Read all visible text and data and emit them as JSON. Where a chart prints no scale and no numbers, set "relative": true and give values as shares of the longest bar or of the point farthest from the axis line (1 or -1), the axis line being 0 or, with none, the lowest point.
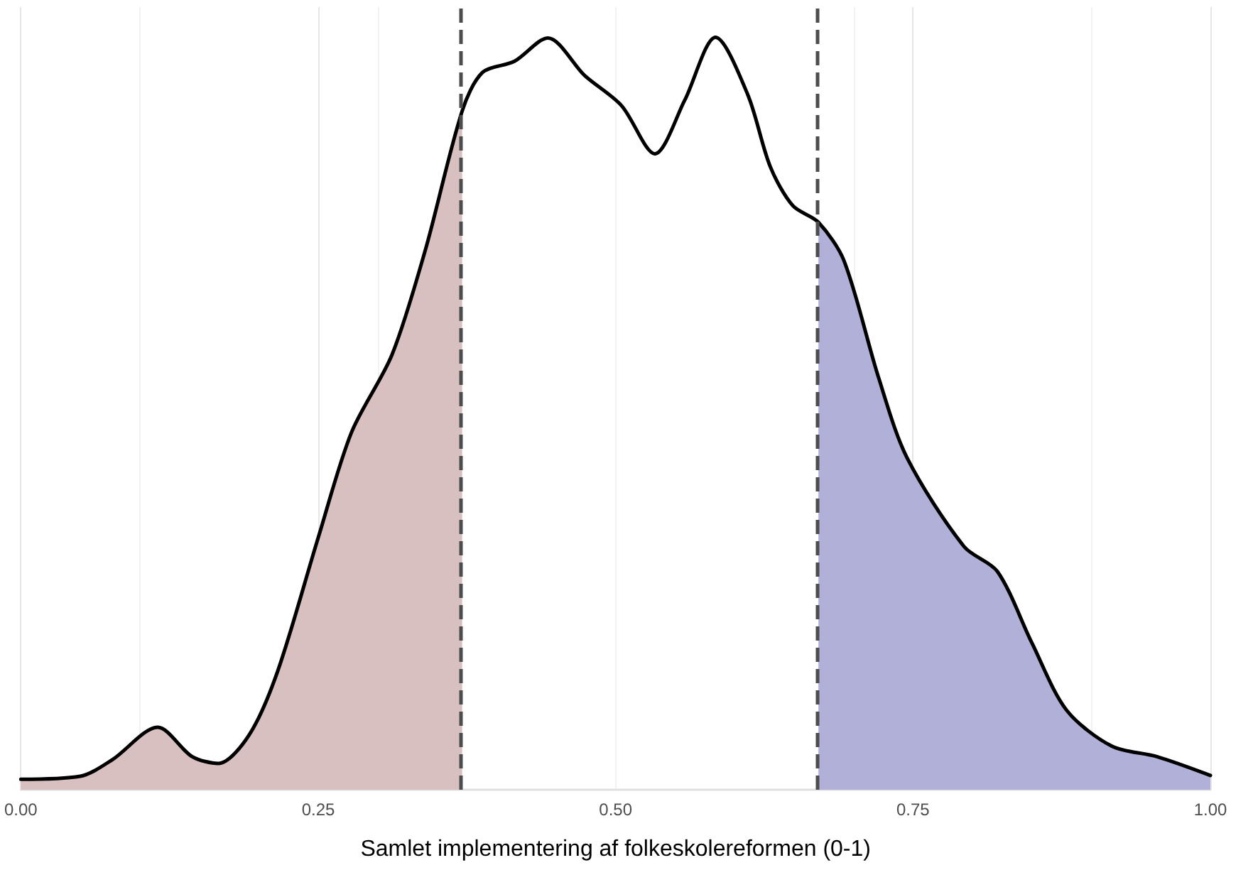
{
  "chart_data": {
    "type": "area",
    "relative": true,
    "xlabel": "Samlet implementering af folkeskolereformen (0-1)",
    "xlim": [
      0,
      1
    ],
    "xticks": [
      {
        "value": 0,
        "label": "0.00"
      },
      {
        "value": 0.25,
        "label": "0.25"
      },
      {
        "value": 0.5,
        "label": "0.50"
      },
      {
        "value": 0.75,
        "label": "0.75"
      },
      {
        "value": 1,
        "label": "1.00"
      }
    ],
    "tick_labels": "x",
    "grid": true,
    "marker": "none",
    "line_style": "solid",
    "ref_lines": [
      {
        "axis": "x",
        "value": 0.371,
        "color": "#4d4d4d",
        "line_style": "dashed"
      },
      {
        "axis": "x",
        "value": 0.6705,
        "color": "#4d4d4d",
        "line_style": "dashed"
      }
    ],
    "series": [
      {
        "color": "#d8c0c1",
        "x": [
          0,
          0.05,
          0.077,
          0.115,
          0.144,
          0.166,
          0.192,
          0.216,
          0.25,
          0.278,
          0.312,
          0.34,
          0.371
        ],
        "values": [
          0.014,
          0.018,
          0.04,
          0.083,
          0.044,
          0.035,
          0.073,
          0.158,
          0.335,
          0.475,
          0.578,
          0.717,
          0.902
        ]
      },
      {
        "color": "#b0b0d8",
        "x": [
          0.6705,
          0.692,
          0.721,
          0.745,
          0.793,
          0.821,
          0.85,
          0.879,
          0.917,
          0.955,
          1
        ],
        "values": [
          0.754,
          0.703,
          0.548,
          0.441,
          0.323,
          0.29,
          0.195,
          0.106,
          0.058,
          0.044,
          0.019
        ]
      },
      {
        "type": "line",
        "color": "#000000",
        "x": [
          0,
          0.05,
          0.077,
          0.115,
          0.144,
          0.166,
          0.192,
          0.216,
          0.25,
          0.278,
          0.312,
          0.34,
          0.371,
          0.388,
          0.415,
          0.443,
          0.474,
          0.505,
          0.533,
          0.558,
          0.584,
          0.611,
          0.63,
          0.649,
          0.6705,
          0.692,
          0.721,
          0.745,
          0.793,
          0.821,
          0.85,
          0.879,
          0.917,
          0.955,
          1
        ],
        "values": [
          0.014,
          0.018,
          0.04,
          0.083,
          0.044,
          0.035,
          0.073,
          0.158,
          0.335,
          0.475,
          0.578,
          0.717,
          0.902,
          0.953,
          0.968,
          0.999,
          0.949,
          0.909,
          0.845,
          0.916,
          1,
          0.924,
          0.828,
          0.776,
          0.754,
          0.703,
          0.548,
          0.441,
          0.323,
          0.29,
          0.195,
          0.106,
          0.058,
          0.044,
          0.019
        ]
      }
    ]
  }
}
